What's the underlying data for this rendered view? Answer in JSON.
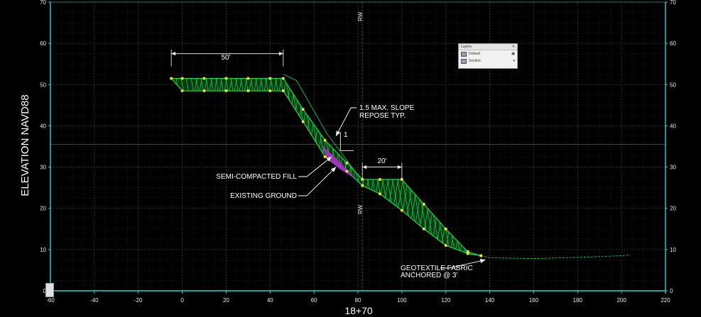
{
  "y_axis_title": "ELEVATION NAVD88",
  "x_axis_title": "18+70",
  "x_ticks": [
    "-60",
    "-40",
    "-20",
    "0",
    "20",
    "40",
    "60",
    "80",
    "100",
    "120",
    "140",
    "160",
    "180",
    "200",
    "220"
  ],
  "y_ticks": [
    "0",
    "10",
    "20",
    "30",
    "40",
    "50",
    "60",
    "70"
  ],
  "rw_label_top": "RW",
  "rw_label_mid": "RW",
  "dim_upper": "50'",
  "dim_lower": "20'",
  "slope_ratio": "1",
  "note_slope": [
    "1.5 MAX. SLOPE",
    "REPOSE TYP."
  ],
  "note_fill": "SEMI-COMPACTED FILL",
  "note_ground": "EXISTING GROUND",
  "note_fabric": [
    "GEOTEXTILE FABRIC",
    "ANCHORED @ 3'"
  ],
  "panel": {
    "title": "Layers",
    "row1": "Default",
    "row2": "Section"
  },
  "colors": {
    "background": "#000000",
    "grid": "#2a2a2a",
    "axis": "#2fd0d0",
    "structure": "#1bd84a",
    "structure_fill": "#0b3a14",
    "nodes": "#f2e33a",
    "fill_area": "#b52fcf",
    "annotation": "#ffffff"
  },
  "chart_data": {
    "type": "line",
    "x_range": [
      -60,
      220
    ],
    "y_range": [
      0,
      70
    ],
    "series": [
      {
        "x": [
          -5,
          0,
          10,
          20,
          30,
          40,
          46,
          55,
          65,
          75,
          82,
          90,
          100,
          110,
          120,
          130,
          136
        ],
        "y": [
          51.5,
          51.5,
          51.5,
          51.5,
          51.5,
          51.5,
          51.5,
          44,
          36.5,
          31,
          27,
          27,
          27,
          21,
          15,
          9.5,
          8.5
        ]
      },
      {
        "x": [
          0,
          10,
          20,
          30,
          40,
          46,
          55,
          65,
          75,
          82,
          90,
          100,
          110,
          120,
          130,
          136,
          140,
          160,
          180,
          200,
          204
        ],
        "y": [
          48.5,
          48.5,
          48.5,
          48.5,
          48.5,
          48.5,
          41,
          32.5,
          29,
          25.5,
          23.5,
          19.5,
          15,
          11,
          9,
          8.5,
          8,
          7.8,
          8.1,
          8.5,
          8.7
        ]
      }
    ]
  }
}
